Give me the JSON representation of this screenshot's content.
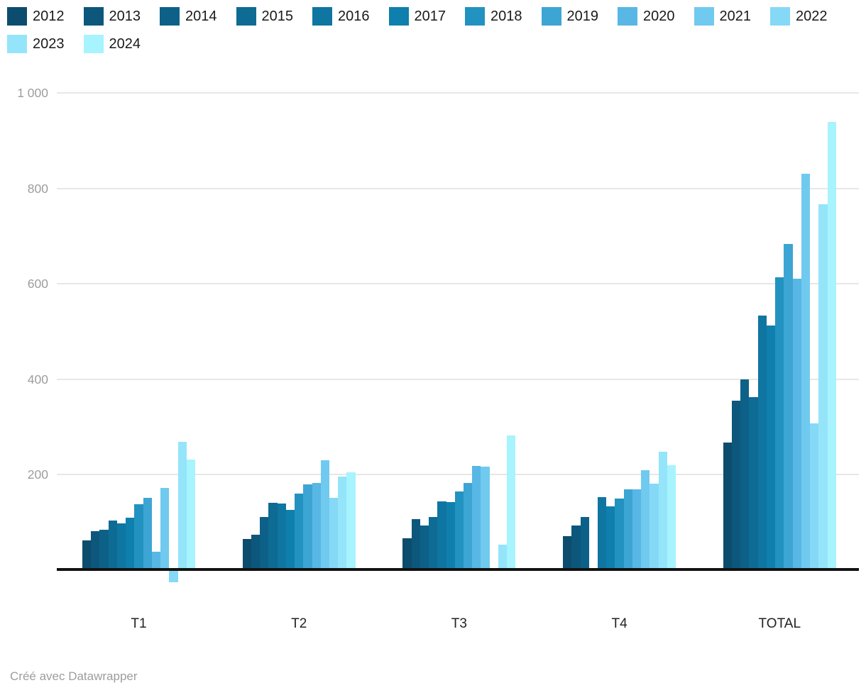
{
  "chart_data": {
    "type": "bar",
    "title": "",
    "xlabel": "",
    "ylabel": "",
    "categories": [
      "T1",
      "T2",
      "T3",
      "T4",
      "TOTAL"
    ],
    "series": [
      {
        "name": "2012",
        "color": "#0C4D6E",
        "values": [
          63,
          66,
          67,
          71,
          267
        ]
      },
      {
        "name": "2013",
        "color": "#0C577B",
        "values": [
          81,
          74,
          107,
          93,
          355
        ]
      },
      {
        "name": "2014",
        "color": "#0D6188",
        "values": [
          84,
          112,
          93,
          111,
          400
        ]
      },
      {
        "name": "2015",
        "color": "#0E6B94",
        "values": [
          104,
          141,
          112,
          5,
          362
        ]
      },
      {
        "name": "2016",
        "color": "#0F75A1",
        "values": [
          98,
          139,
          144,
          153,
          534
        ]
      },
      {
        "name": "2017",
        "color": "#0F7FAE",
        "values": [
          110,
          127,
          142,
          134,
          513
        ]
      },
      {
        "name": "2018",
        "color": "#2292C0",
        "values": [
          138,
          160,
          165,
          150,
          613
        ]
      },
      {
        "name": "2019",
        "color": "#3DA5D3",
        "values": [
          151,
          180,
          183,
          170,
          684
        ]
      },
      {
        "name": "2020",
        "color": "#58B7E4",
        "values": [
          39,
          183,
          219,
          170,
          611
        ]
      },
      {
        "name": "2021",
        "color": "#70CAEF",
        "values": [
          173,
          231,
          217,
          209,
          830
        ]
      },
      {
        "name": "2022",
        "color": "#85D9F6",
        "values": [
          -25,
          152,
          0,
          181,
          308
        ]
      },
      {
        "name": "2023",
        "color": "#94E5FA",
        "values": [
          269,
          196,
          54,
          248,
          767
        ]
      },
      {
        "name": "2024",
        "color": "#A7F3FE",
        "values": [
          232,
          205,
          282,
          220,
          939
        ]
      }
    ],
    "y_ticks": [
      {
        "value": 200,
        "label": "200"
      },
      {
        "value": 400,
        "label": "400"
      },
      {
        "value": 600,
        "label": "600"
      },
      {
        "value": 800,
        "label": "800"
      },
      {
        "value": 1000,
        "label": "1 000"
      }
    ],
    "ylim": [
      -40,
      1000
    ],
    "grid": "horizontal",
    "legend_position": "top"
  },
  "footer": {
    "credit": "Créé avec Datawrapper"
  }
}
